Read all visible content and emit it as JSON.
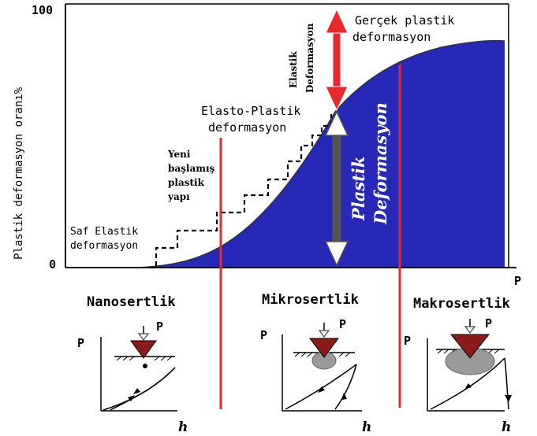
{
  "axes": {
    "y_label": "Plastik deformasyon oranı%",
    "y_top": "100",
    "y_bottom": "0",
    "x_label": "P"
  },
  "annotations": {
    "gercek": [
      "Gerçek plastik",
      "deformasyon"
    ],
    "elastik": [
      "Elastik",
      "Deformasyon"
    ],
    "elasto": [
      "Elasto-Plastik",
      "deformasyon"
    ],
    "yeni": [
      "Yeni",
      "başlamış",
      "plastik",
      "yapı"
    ],
    "saf": [
      "Saf Elastik",
      "deformasyon"
    ],
    "plastik_def": [
      "Plastik",
      "Deformasyon"
    ]
  },
  "regions": [
    {
      "title": "Nanosertlik",
      "load_label": "P",
      "y_label": "P",
      "x_label": "h"
    },
    {
      "title": "Mikrosertlik",
      "load_label": "P",
      "y_label": "P",
      "x_label": "h"
    },
    {
      "title": "Makrosertlik",
      "load_label": "P",
      "y_label": "P",
      "x_label": "h"
    }
  ],
  "colors": {
    "plastic_fill": "#2727b8",
    "divider": "#e8282c",
    "elastic_arrow": "#e8282c",
    "indenter": "#8b1a1a",
    "deformed_zone": "#9a9a9a"
  }
}
